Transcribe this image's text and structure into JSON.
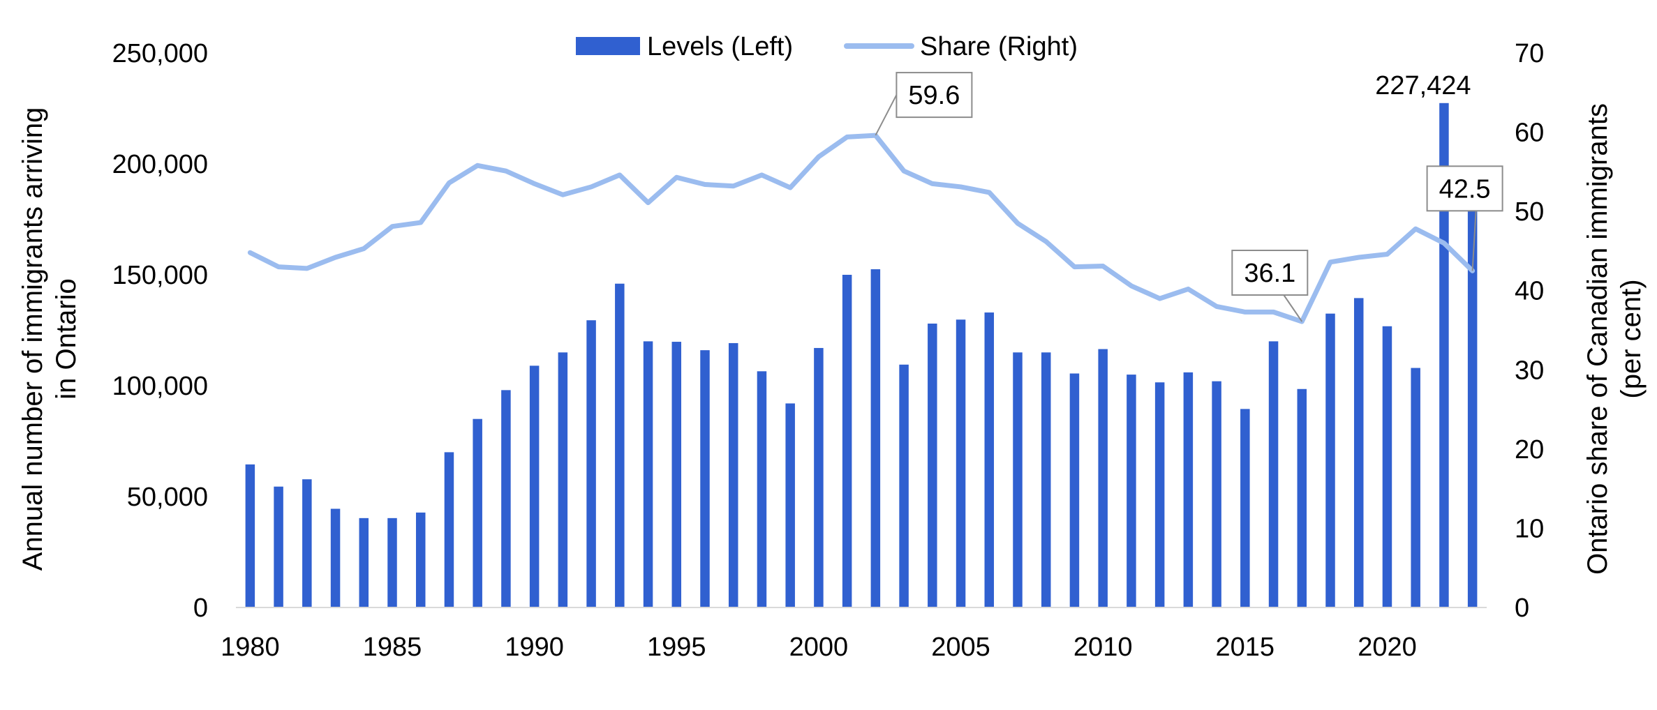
{
  "chart_data": {
    "type": "bar",
    "x": [
      1980,
      1981,
      1982,
      1983,
      1984,
      1985,
      1986,
      1987,
      1988,
      1989,
      1990,
      1991,
      1992,
      1993,
      1994,
      1995,
      1996,
      1997,
      1998,
      1999,
      2000,
      2001,
      2002,
      2003,
      2004,
      2005,
      2006,
      2007,
      2008,
      2009,
      2010,
      2011,
      2012,
      2013,
      2014,
      2015,
      2016,
      2017,
      2018,
      2019,
      2020,
      2021,
      2022,
      2023
    ],
    "series": [
      {
        "name": "Levels (Left)",
        "type": "bar",
        "axis": "left",
        "color": "#3060d0",
        "values": [
          64500,
          54500,
          57800,
          44500,
          40300,
          40300,
          42800,
          70000,
          85000,
          98000,
          109000,
          115000,
          129500,
          146000,
          120000,
          119800,
          116000,
          119200,
          106500,
          92000,
          117000,
          150000,
          152500,
          109500,
          128000,
          129800,
          133000,
          115000,
          115000,
          105500,
          116500,
          105000,
          101500,
          106000,
          102000,
          89500,
          120000,
          98500,
          132500,
          139500,
          126800,
          108000,
          227424,
          199000
        ]
      },
      {
        "name": "Share (Right)",
        "type": "line",
        "axis": "right",
        "color": "#9bbcef",
        "values": [
          44.8,
          43.0,
          42.8,
          44.2,
          45.3,
          48.1,
          48.6,
          53.6,
          55.8,
          55.1,
          53.5,
          52.1,
          53.1,
          54.6,
          51.1,
          54.3,
          53.4,
          53.2,
          54.6,
          53.0,
          56.9,
          59.4,
          59.6,
          55.1,
          53.5,
          53.1,
          52.4,
          48.5,
          46.2,
          43.0,
          43.1,
          40.6,
          39.0,
          40.2,
          38.0,
          37.3,
          37.3,
          36.1,
          43.6,
          44.2,
          44.6,
          47.8,
          46.0,
          42.5
        ]
      }
    ],
    "left_axis": {
      "label": "Annual number of immigrants arriving in Ontario",
      "label_lines": [
        "Annual number of immigrants arriving",
        "in Ontario"
      ],
      "min": 0,
      "max": 250000,
      "ticks": [
        0,
        50000,
        100000,
        150000,
        200000,
        250000
      ],
      "tick_labels": [
        "0",
        "50,000",
        "100,000",
        "150,000",
        "200,000",
        "250,000"
      ]
    },
    "right_axis": {
      "label": "Ontario share of Canadian immigrants (per cent)",
      "label_lines": [
        "Ontario share of Canadian immigrants",
        "(per cent)"
      ],
      "min": 0,
      "max": 70,
      "ticks": [
        0,
        10,
        20,
        30,
        40,
        50,
        60,
        70
      ],
      "tick_labels": [
        "0",
        "10",
        "20",
        "30",
        "40",
        "50",
        "60",
        "70"
      ]
    },
    "x_axis": {
      "tick_values": [
        1980,
        1985,
        1990,
        1995,
        2000,
        2005,
        2010,
        2015,
        2020
      ],
      "tick_labels": [
        "1980",
        "1985",
        "1990",
        "1995",
        "2000",
        "2005",
        "2010",
        "2015",
        "2020"
      ]
    },
    "annotations": [
      {
        "text": "227,424",
        "series": "Levels (Left)",
        "x": 2022,
        "boxed": false
      },
      {
        "text": "59.6",
        "series": "Share (Right)",
        "x": 2002,
        "boxed": true
      },
      {
        "text": "36.1",
        "series": "Share (Right)",
        "x": 2017,
        "boxed": true
      },
      {
        "text": "42.5",
        "series": "Share (Right)",
        "x": 2023,
        "boxed": true
      }
    ],
    "legend": {
      "position": "top-center"
    },
    "grid": false
  }
}
